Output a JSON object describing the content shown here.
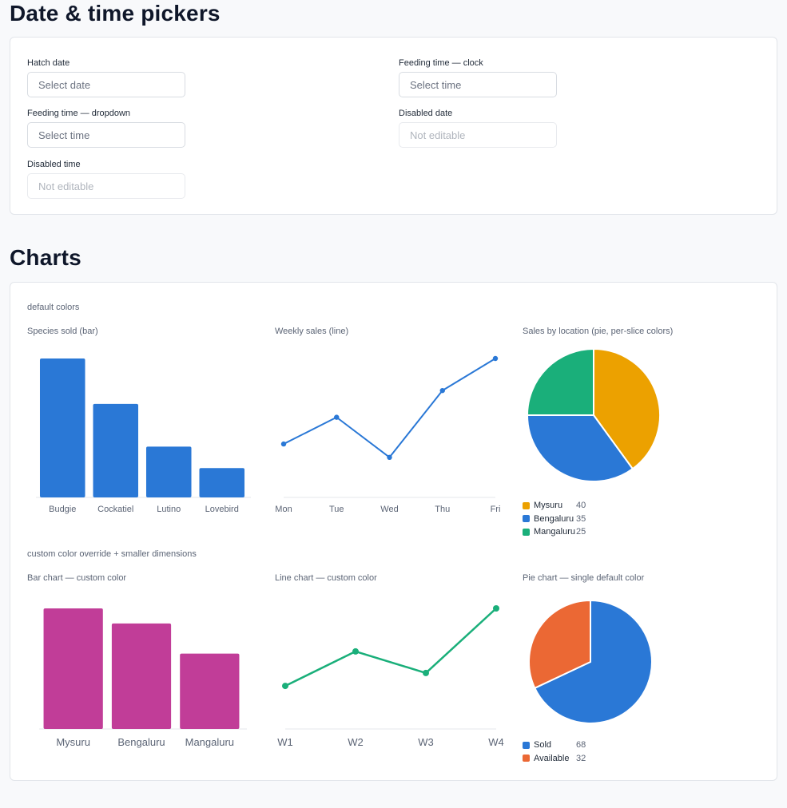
{
  "pickers": {
    "heading": "Date & time pickers",
    "fields": [
      {
        "label": "Hatch date",
        "placeholder": "Select date",
        "disabled": false
      },
      {
        "label": "Feeding time — clock",
        "placeholder": "Select time",
        "disabled": false
      },
      {
        "label": "Feeding time — dropdown",
        "placeholder": "Select time",
        "disabled": false
      },
      {
        "label": "Disabled date",
        "placeholder": "Not editable",
        "disabled": true
      },
      {
        "label": "Disabled time",
        "placeholder": "Not editable",
        "disabled": true
      }
    ]
  },
  "charts": {
    "heading": "Charts",
    "group1_note": "default colors",
    "group2_note": "custom color override + smaller dimensions"
  },
  "chart_data": [
    {
      "type": "bar",
      "title": "Species sold (bar)",
      "categories": [
        "Budgie",
        "Cockatiel",
        "Lutino",
        "Lovebird"
      ],
      "values": [
        52,
        35,
        19,
        11
      ],
      "ylim": [
        0,
        52
      ],
      "color": "#2a78d6"
    },
    {
      "type": "line",
      "title": "Weekly sales (line)",
      "categories": [
        "Mon",
        "Tue",
        "Wed",
        "Thu",
        "Fri"
      ],
      "values": [
        20,
        30,
        15,
        40,
        52
      ],
      "ylim": [
        0,
        52
      ],
      "color": "#2a78d6"
    },
    {
      "type": "pie",
      "title": "Sales by location (pie, per-slice colors)",
      "slices": [
        {
          "label": "Mysuru",
          "value": 40,
          "color": "#eca100"
        },
        {
          "label": "Bengaluru",
          "value": 35,
          "color": "#2a78d6"
        },
        {
          "label": "Mangaluru",
          "value": 25,
          "color": "#1aaf7a"
        }
      ]
    },
    {
      "type": "bar",
      "title": "Bar chart — custom color",
      "categories": [
        "Mysuru",
        "Bengaluru",
        "Mangaluru"
      ],
      "values": [
        40,
        35,
        25
      ],
      "ylim": [
        0,
        40
      ],
      "color": "#c13d98"
    },
    {
      "type": "line",
      "title": "Line chart — custom color",
      "categories": [
        "W1",
        "W2",
        "W3",
        "W4"
      ],
      "values": [
        10,
        18,
        13,
        28
      ],
      "ylim": [
        0,
        28
      ],
      "color": "#1aaf7a"
    },
    {
      "type": "pie",
      "title": "Pie chart — single default color",
      "slices": [
        {
          "label": "Sold",
          "value": 68,
          "color": "#2a78d6"
        },
        {
          "label": "Available",
          "value": 32,
          "color": "#eb6834"
        }
      ]
    }
  ]
}
